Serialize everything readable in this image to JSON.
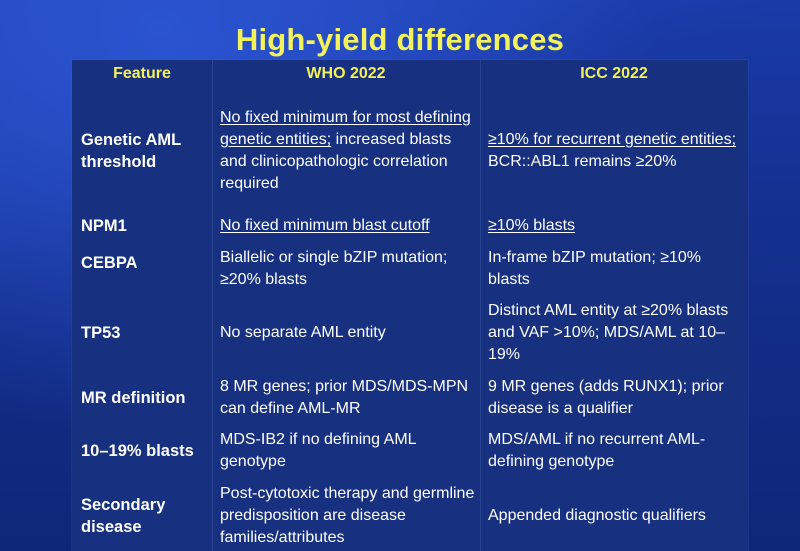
{
  "title": "High-yield differences",
  "headers": {
    "feature": "Feature",
    "who": "WHO 2022",
    "icc": "ICC 2022"
  },
  "rows": [
    {
      "feature": "Genetic AML threshold",
      "who_underlined": "No fixed minimum for most defining genetic entities;",
      "who_rest": " increased blasts and clinicopathologic correlation required",
      "icc_underlined": "≥10% for recurrent genetic entities;",
      "icc_rest": " BCR::ABL1 remains ≥20%"
    },
    {
      "feature": "NPM1",
      "who_underlined": "No fixed minimum blast cutoff",
      "who_rest": "",
      "icc_underlined": "≥10% blasts",
      "icc_rest": ""
    },
    {
      "feature": "CEBPA",
      "who_underlined": "",
      "who_rest": "Biallelic or single bZIP mutation; ≥20% blasts",
      "icc_underlined": "",
      "icc_rest": "In-frame bZIP mutation; ≥10% blasts"
    },
    {
      "feature": "TP53",
      "who_underlined": "",
      "who_rest": "No separate AML entity",
      "icc_underlined": "",
      "icc_rest": "Distinct AML entity at ≥20% blasts and VAF >10%; MDS/AML at 10–19%"
    },
    {
      "feature": "MR definition",
      "who_underlined": "",
      "who_rest": "8 MR genes; prior MDS/MDS-MPN can define AML-MR",
      "icc_underlined": "",
      "icc_rest": "9 MR genes (adds RUNX1); prior disease is a qualifier"
    },
    {
      "feature": "10–19% blasts",
      "who_underlined": "",
      "who_rest": "MDS-IB2 if no defining AML genotype",
      "icc_underlined": "",
      "icc_rest": "MDS/AML if no recurrent AML-defining genotype"
    },
    {
      "feature": "Secondary disease",
      "who_underlined": "",
      "who_rest": "Post-cytotoxic therapy and germline predisposition are disease families/attributes",
      "icc_underlined": "",
      "icc_rest": "Appended diagnostic qualifiers"
    }
  ],
  "colors": {
    "title": "#f4f25a",
    "header": "#f4f25a",
    "text": "#ffffff",
    "table_bg": "#17307f"
  }
}
